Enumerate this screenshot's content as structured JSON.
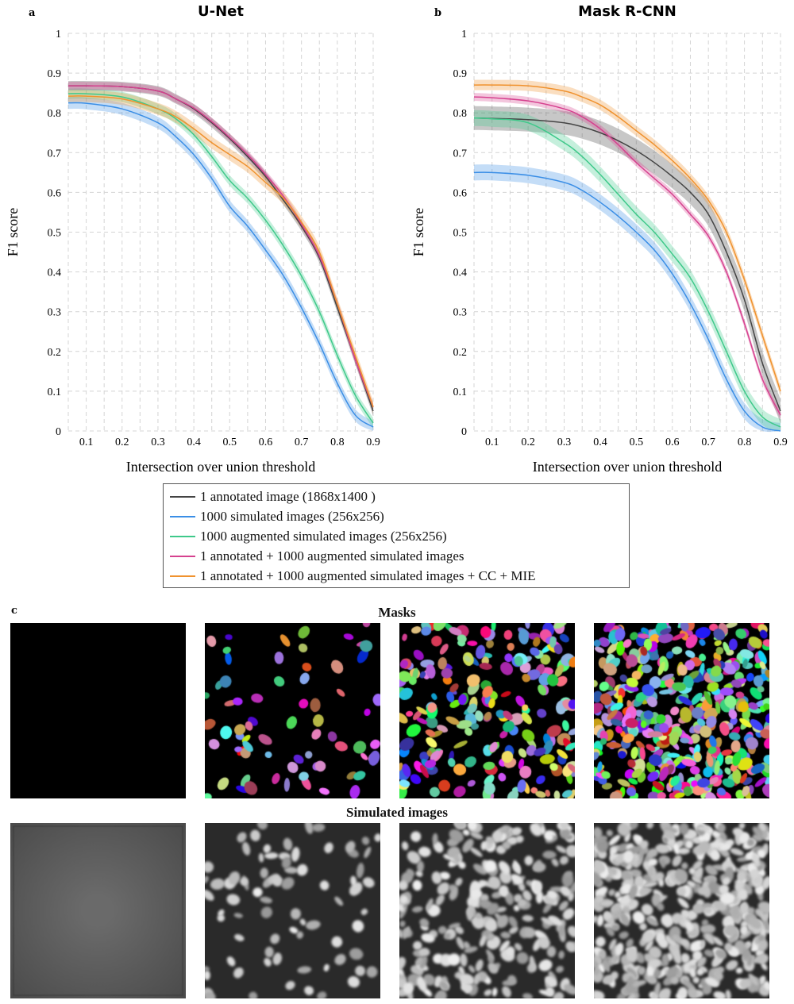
{
  "chart_data": [
    {
      "type": "line",
      "panel_label": "a",
      "title": "U-Net",
      "xlabel": "Intersection over union threshold",
      "ylabel": "F1 score",
      "xlim": [
        0.05,
        0.9
      ],
      "ylim": [
        0,
        1
      ],
      "xticks": [
        "0.1",
        "0.2",
        "0.3",
        "0.4",
        "0.5",
        "0.6",
        "0.7",
        "0.8",
        "0.9"
      ],
      "yticks": [
        "0",
        "0.1",
        "0.2",
        "0.3",
        "0.4",
        "0.5",
        "0.6",
        "0.7",
        "0.8",
        "0.9",
        "1"
      ],
      "grid": true,
      "x": [
        0.05,
        0.1,
        0.2,
        0.3,
        0.35,
        0.4,
        0.45,
        0.5,
        0.55,
        0.6,
        0.65,
        0.7,
        0.75,
        0.8,
        0.85,
        0.9
      ],
      "series": [
        {
          "name": "1 annotated image (1868x1400 )",
          "color": "#444444",
          "band": 0.012,
          "values": [
            0.868,
            0.868,
            0.866,
            0.855,
            0.835,
            0.81,
            0.775,
            0.735,
            0.69,
            0.64,
            0.58,
            0.515,
            0.435,
            0.31,
            0.18,
            0.05
          ]
        },
        {
          "name": "1000 simulated images (256x256)",
          "color": "#3a8ee6",
          "band": 0.015,
          "values": [
            0.825,
            0.824,
            0.81,
            0.775,
            0.74,
            0.695,
            0.635,
            0.565,
            0.515,
            0.455,
            0.39,
            0.31,
            0.22,
            0.12,
            0.04,
            0.01
          ]
        },
        {
          "name": "1000 augmented simulated images (256x256)",
          "color": "#3ec98a",
          "band": 0.013,
          "values": [
            0.848,
            0.848,
            0.84,
            0.81,
            0.785,
            0.745,
            0.69,
            0.63,
            0.585,
            0.53,
            0.465,
            0.39,
            0.3,
            0.19,
            0.09,
            0.02
          ]
        },
        {
          "name": "1 annotated + 1000 augmented simulated images",
          "color": "#d6418f",
          "band": 0.01,
          "values": [
            0.868,
            0.868,
            0.866,
            0.855,
            0.835,
            0.812,
            0.778,
            0.738,
            0.695,
            0.645,
            0.59,
            0.52,
            0.44,
            0.32,
            0.18,
            0.06
          ]
        },
        {
          "name": "1 annotated + 1000 augmented simulated images + CC + MIE",
          "color": "#f0922e",
          "band": 0.015,
          "values": [
            0.842,
            0.842,
            0.835,
            0.81,
            0.79,
            0.76,
            0.725,
            0.695,
            0.665,
            0.625,
            0.585,
            0.525,
            0.45,
            0.32,
            0.19,
            0.06
          ]
        }
      ]
    },
    {
      "type": "line",
      "panel_label": "b",
      "title": "Mask R-CNN",
      "xlabel": "Intersection over union threshold",
      "ylabel": "F1 score",
      "xlim": [
        0.05,
        0.9
      ],
      "ylim": [
        0,
        1
      ],
      "xticks": [
        "0.1",
        "0.2",
        "0.3",
        "0.4",
        "0.5",
        "0.6",
        "0.7",
        "0.8",
        "0.9"
      ],
      "yticks": [
        "0",
        "0.1",
        "0.2",
        "0.3",
        "0.4",
        "0.5",
        "0.6",
        "0.7",
        "0.8",
        "0.9",
        "1"
      ],
      "grid": true,
      "x": [
        0.05,
        0.1,
        0.2,
        0.3,
        0.35,
        0.4,
        0.45,
        0.5,
        0.55,
        0.6,
        0.65,
        0.7,
        0.75,
        0.8,
        0.85,
        0.9
      ],
      "series": [
        {
          "name": "1 annotated image (1868x1400 )",
          "color": "#444444",
          "band": 0.03,
          "values": [
            0.787,
            0.786,
            0.783,
            0.775,
            0.765,
            0.75,
            0.73,
            0.705,
            0.675,
            0.64,
            0.6,
            0.545,
            0.45,
            0.33,
            0.17,
            0.05
          ]
        },
        {
          "name": "1000 simulated images (256x256)",
          "color": "#3a8ee6",
          "band": 0.02,
          "values": [
            0.65,
            0.65,
            0.643,
            0.625,
            0.605,
            0.575,
            0.54,
            0.5,
            0.455,
            0.395,
            0.32,
            0.23,
            0.13,
            0.05,
            0.01,
            0.0
          ]
        },
        {
          "name": "1000 augmented simulated images (256x256)",
          "color": "#3ec98a",
          "band": 0.02,
          "values": [
            0.787,
            0.785,
            0.775,
            0.725,
            0.69,
            0.645,
            0.595,
            0.545,
            0.5,
            0.445,
            0.385,
            0.3,
            0.2,
            0.1,
            0.035,
            0.01
          ]
        },
        {
          "name": "1 annotated + 1000 augmented simulated images",
          "color": "#d6418f",
          "band": 0.01,
          "values": [
            0.84,
            0.838,
            0.83,
            0.81,
            0.79,
            0.76,
            0.72,
            0.675,
            0.635,
            0.595,
            0.545,
            0.49,
            0.4,
            0.27,
            0.13,
            0.04
          ]
        },
        {
          "name": "1 annotated + 1000 augmented simulated images + CC + MIE",
          "color": "#f0922e",
          "band": 0.013,
          "values": [
            0.87,
            0.87,
            0.868,
            0.855,
            0.84,
            0.82,
            0.79,
            0.755,
            0.72,
            0.68,
            0.635,
            0.58,
            0.5,
            0.38,
            0.24,
            0.1
          ]
        }
      ]
    }
  ],
  "legend": {
    "items": [
      {
        "label": "1 annotated image (1868x1400 )",
        "color": "#444444"
      },
      {
        "label": "1000 simulated images (256x256)",
        "color": "#3a8ee6"
      },
      {
        "label": "1000 augmented simulated images (256x256)",
        "color": "#3ec98a"
      },
      {
        "label": "1 annotated + 1000 augmented simulated images",
        "color": "#d6418f"
      },
      {
        "label": "1 annotated + 1000 augmented simulated images + CC + MIE",
        "color": "#f0922e"
      }
    ]
  },
  "panel_c": {
    "panel_label": "c",
    "masks_title": "Masks",
    "simulated_title": "Simulated images"
  }
}
